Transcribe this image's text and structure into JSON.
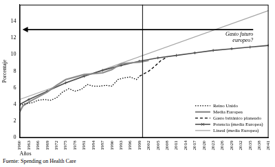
{
  "chart_data": {
    "type": "line",
    "x_label": "Años",
    "y_label": "Porcentaje",
    "source": "Fuente: Spending on Health Care",
    "xlim": [
      1960,
      2041
    ],
    "xticks": [
      1960,
      1963,
      1966,
      1969,
      1972,
      1975,
      1978,
      1981,
      1984,
      1987,
      1990,
      1993,
      1996,
      1999,
      2002,
      2005,
      2008,
      2011,
      2014,
      2017,
      2020,
      2023,
      2026,
      2029,
      2032,
      2035,
      2038,
      2041
    ],
    "ylim": [
      0,
      16
    ],
    "yticks": [
      0,
      2,
      4,
      6,
      8,
      10,
      12,
      14
    ],
    "grid": false,
    "legend": "lower right",
    "vertical_line": 2000,
    "annotations": [
      {
        "text": "Gasto futuro europeo?",
        "x": 2036,
        "y": 13
      }
    ],
    "series": [
      {
        "name": "Reino Unido",
        "color": "#000000",
        "line_style": "dotted",
        "x": [
          1960,
          1962,
          1964,
          1966,
          1968,
          1970,
          1972,
          1974,
          1976,
          1978,
          1980,
          1982,
          1984,
          1986,
          1988,
          1990,
          1992,
          1994,
          1996,
          1998,
          1999
        ],
        "values": [
          3.9,
          4.1,
          4.2,
          4.5,
          4.6,
          4.5,
          4.8,
          5.5,
          5.9,
          5.6,
          5.8,
          6.4,
          6.2,
          6.2,
          6.3,
          6.2,
          7.0,
          7.2,
          7.3,
          7.0,
          7.4
        ]
      },
      {
        "name": "Media Europea",
        "color": "#8c8c8c",
        "line_style": "solid",
        "x": [
          1960,
          1961,
          1963,
          1966,
          1969,
          1972,
          1975,
          1978,
          1981,
          1984,
          1987,
          1990,
          1993,
          1996,
          1999,
          2002
        ],
        "values": [
          3.1,
          3.8,
          4.3,
          4.9,
          5.5,
          6.3,
          7.0,
          7.3,
          7.6,
          7.7,
          7.8,
          8.2,
          8.9,
          9.0,
          9.1,
          9.3
        ]
      },
      {
        "name": "Gasto británico planeado",
        "color": "#000000",
        "line_style": "dashed",
        "x": [
          1999,
          2000,
          2002,
          2004,
          2006,
          2008
        ],
        "values": [
          7.4,
          7.6,
          8.0,
          8.6,
          9.3,
          9.7
        ]
      },
      {
        "name": "Potencia (media Europea)",
        "color": "#4d4d4d",
        "line_style": "solid",
        "marker": "cross",
        "x": [
          1960,
          1963,
          1969,
          1975,
          1981,
          1987,
          1993,
          1999,
          2005,
          2011,
          2017,
          2023,
          2029,
          2035,
          2041
        ],
        "values": [
          4.0,
          4.6,
          5.6,
          6.6,
          7.4,
          8.1,
          8.7,
          9.2,
          9.6,
          9.9,
          10.2,
          10.5,
          10.7,
          10.9,
          11.1
        ]
      },
      {
        "name": "Lineal (media Europea)",
        "color": "#a6a6a6",
        "line_style": "solid",
        "x": [
          1960,
          2041
        ],
        "values": [
          4.6,
          15.3
        ]
      }
    ]
  }
}
